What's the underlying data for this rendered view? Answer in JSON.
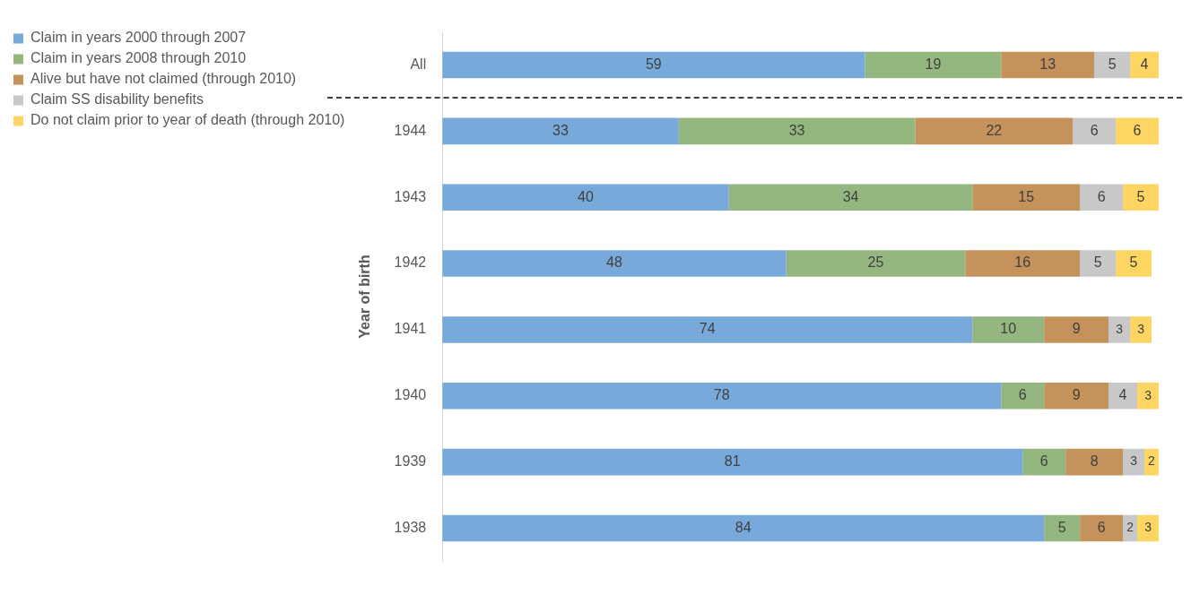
{
  "chart_data": {
    "type": "bar",
    "orientation": "horizontal",
    "stacked": true,
    "data_labels": true,
    "ylabel": "Year of birth",
    "legend": "top left",
    "tick_labels": "y",
    "categories": [
      "All",
      "1944",
      "1943",
      "1942",
      "1941",
      "1940",
      "1939",
      "1938"
    ],
    "series": [
      {
        "name": "Claim in years 2000 through 2007",
        "color": "#77a9da",
        "values": [
          59,
          33,
          40,
          48,
          74,
          78,
          81,
          84
        ]
      },
      {
        "name": "Claim in years 2008 through 2010",
        "color": "#93b77f",
        "values": [
          19,
          33,
          34,
          25,
          10,
          6,
          6,
          5
        ]
      },
      {
        "name": "Alive but have not claimed (through 2010)",
        "color": "#c4925a",
        "values": [
          13,
          22,
          15,
          16,
          9,
          9,
          8,
          6
        ]
      },
      {
        "name": "Claim SS disability benefits",
        "color": "#c8c8c8",
        "values": [
          5,
          6,
          6,
          5,
          3,
          4,
          3,
          2
        ]
      },
      {
        "name": "Do not claim prior to year of death (through 2010)",
        "color": "#fdd562",
        "values": [
          4,
          6,
          5,
          5,
          3,
          3,
          2,
          3
        ]
      }
    ]
  }
}
